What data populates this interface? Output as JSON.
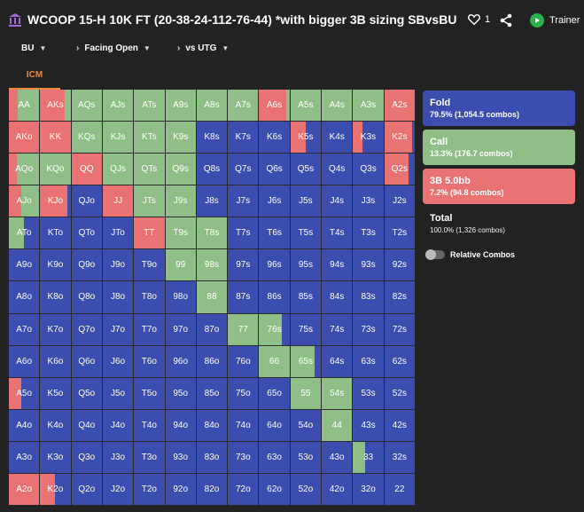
{
  "header": {
    "title": "WCOOP 15-H 10K FT (20-38-24-112-76-44) *with bigger 3B sizing SBvsBU",
    "likes": "1",
    "trainer_label": "Trainer"
  },
  "filters": {
    "position": "BU",
    "facing": "Facing Open",
    "opponent": "vs UTG"
  },
  "tab": "ICM",
  "colors": {
    "fold": "#3c4db0",
    "call": "#8fbf86",
    "raise": "#e87372"
  },
  "grid": {
    "ranks": [
      "A",
      "K",
      "Q",
      "J",
      "T",
      "9",
      "8",
      "7",
      "6",
      "5",
      "4",
      "3",
      "2"
    ],
    "hands": [
      [
        "AA",
        "AKs",
        "AQs",
        "AJs",
        "ATs",
        "A9s",
        "A8s",
        "A7s",
        "A6s",
        "A5s",
        "A4s",
        "A3s",
        "A2s"
      ],
      [
        "AKo",
        "KK",
        "KQs",
        "KJs",
        "KTs",
        "K9s",
        "K8s",
        "K7s",
        "K6s",
        "K5s",
        "K4s",
        "K3s",
        "K2s"
      ],
      [
        "AQo",
        "KQo",
        "QQ",
        "QJs",
        "QTs",
        "Q9s",
        "Q8s",
        "Q7s",
        "Q6s",
        "Q5s",
        "Q4s",
        "Q3s",
        "Q2s"
      ],
      [
        "AJo",
        "KJo",
        "QJo",
        "JJ",
        "JTs",
        "J9s",
        "J8s",
        "J7s",
        "J6s",
        "J5s",
        "J4s",
        "J3s",
        "J2s"
      ],
      [
        "ATo",
        "KTo",
        "QTo",
        "JTo",
        "TT",
        "T9s",
        "T8s",
        "T7s",
        "T6s",
        "T5s",
        "T4s",
        "T3s",
        "T2s"
      ],
      [
        "A9o",
        "K9o",
        "Q9o",
        "J9o",
        "T9o",
        "99",
        "98s",
        "97s",
        "96s",
        "95s",
        "94s",
        "93s",
        "92s"
      ],
      [
        "A8o",
        "K8o",
        "Q8o",
        "J8o",
        "T8o",
        "98o",
        "88",
        "87s",
        "86s",
        "85s",
        "84s",
        "83s",
        "82s"
      ],
      [
        "A7o",
        "K7o",
        "Q7o",
        "J7o",
        "T7o",
        "97o",
        "87o",
        "77",
        "76s",
        "75s",
        "74s",
        "73s",
        "72s"
      ],
      [
        "A6o",
        "K6o",
        "Q6o",
        "J6o",
        "T6o",
        "96o",
        "86o",
        "76o",
        "66",
        "65s",
        "64s",
        "63s",
        "62s"
      ],
      [
        "A5o",
        "K5o",
        "Q5o",
        "J5o",
        "T5o",
        "95o",
        "85o",
        "75o",
        "65o",
        "55",
        "54s",
        "53s",
        "52s"
      ],
      [
        "A4o",
        "K4o",
        "Q4o",
        "J4o",
        "T4o",
        "94o",
        "84o",
        "74o",
        "64o",
        "54o",
        "44",
        "43s",
        "42s"
      ],
      [
        "A3o",
        "K3o",
        "Q3o",
        "J3o",
        "T3o",
        "93o",
        "83o",
        "73o",
        "63o",
        "53o",
        "43o",
        "33",
        "32s"
      ],
      [
        "A2o",
        "K2o",
        "Q2o",
        "J2o",
        "T2o",
        "92o",
        "82o",
        "72o",
        "62o",
        "52o",
        "42o",
        "32o",
        "22"
      ]
    ],
    "strategy": [
      [
        [
          0,
          0.7,
          0.3
        ],
        [
          0,
          0.2,
          0.8
        ],
        [
          0,
          1,
          0
        ],
        [
          0,
          1,
          0
        ],
        [
          0,
          1,
          0
        ],
        [
          0,
          1,
          0
        ],
        [
          0,
          1,
          0
        ],
        [
          0,
          1,
          0
        ],
        [
          0,
          0.1,
          0.9
        ],
        [
          0,
          1,
          0
        ],
        [
          0,
          1,
          0
        ],
        [
          0,
          1,
          0
        ],
        [
          0,
          0,
          1
        ]
      ],
      [
        [
          0,
          0,
          1
        ],
        [
          0,
          0,
          1
        ],
        [
          0,
          1,
          0
        ],
        [
          0,
          1,
          0
        ],
        [
          0,
          1,
          0
        ],
        [
          0,
          1,
          0
        ],
        [
          1,
          0,
          0
        ],
        [
          1,
          0,
          0
        ],
        [
          1,
          0,
          0
        ],
        [
          0.5,
          0,
          0.5
        ],
        [
          1,
          0,
          0
        ],
        [
          0.7,
          0,
          0.3
        ],
        [
          0.1,
          0,
          0.9
        ]
      ],
      [
        [
          0,
          0.75,
          0.25
        ],
        [
          0,
          1,
          0
        ],
        [
          0,
          0,
          1
        ],
        [
          0,
          1,
          0
        ],
        [
          0,
          1,
          0
        ],
        [
          0,
          1,
          0
        ],
        [
          1,
          0,
          0
        ],
        [
          1,
          0,
          0
        ],
        [
          1,
          0,
          0
        ],
        [
          1,
          0,
          0
        ],
        [
          1,
          0,
          0
        ],
        [
          1,
          0,
          0
        ],
        [
          0.2,
          0,
          0.8
        ]
      ],
      [
        [
          0,
          0.6,
          0.4
        ],
        [
          0.1,
          0,
          0.9
        ],
        [
          1,
          0,
          0
        ],
        [
          0,
          0,
          1
        ],
        [
          0,
          1,
          0
        ],
        [
          0,
          1,
          0
        ],
        [
          1,
          0,
          0
        ],
        [
          1,
          0,
          0
        ],
        [
          1,
          0,
          0
        ],
        [
          1,
          0,
          0
        ],
        [
          1,
          0,
          0
        ],
        [
          1,
          0,
          0
        ],
        [
          1,
          0,
          0
        ]
      ],
      [
        [
          0.5,
          0.5,
          0
        ],
        [
          1,
          0,
          0
        ],
        [
          1,
          0,
          0
        ],
        [
          1,
          0,
          0
        ],
        [
          0,
          0,
          1
        ],
        [
          0,
          1,
          0
        ],
        [
          0,
          1,
          0
        ],
        [
          1,
          0,
          0
        ],
        [
          1,
          0,
          0
        ],
        [
          1,
          0,
          0
        ],
        [
          1,
          0,
          0
        ],
        [
          1,
          0,
          0
        ],
        [
          1,
          0,
          0
        ]
      ],
      [
        [
          1,
          0,
          0
        ],
        [
          1,
          0,
          0
        ],
        [
          1,
          0,
          0
        ],
        [
          1,
          0,
          0
        ],
        [
          1,
          0,
          0
        ],
        [
          0,
          1,
          0
        ],
        [
          0,
          1,
          0
        ],
        [
          1,
          0,
          0
        ],
        [
          1,
          0,
          0
        ],
        [
          1,
          0,
          0
        ],
        [
          1,
          0,
          0
        ],
        [
          1,
          0,
          0
        ],
        [
          1,
          0,
          0
        ]
      ],
      [
        [
          1,
          0,
          0
        ],
        [
          1,
          0,
          0
        ],
        [
          1,
          0,
          0
        ],
        [
          1,
          0,
          0
        ],
        [
          1,
          0,
          0
        ],
        [
          1,
          0,
          0
        ],
        [
          0,
          1,
          0
        ],
        [
          1,
          0,
          0
        ],
        [
          1,
          0,
          0
        ],
        [
          1,
          0,
          0
        ],
        [
          1,
          0,
          0
        ],
        [
          1,
          0,
          0
        ],
        [
          1,
          0,
          0
        ]
      ],
      [
        [
          1,
          0,
          0
        ],
        [
          1,
          0,
          0
        ],
        [
          1,
          0,
          0
        ],
        [
          1,
          0,
          0
        ],
        [
          1,
          0,
          0
        ],
        [
          1,
          0,
          0
        ],
        [
          1,
          0,
          0
        ],
        [
          0,
          1,
          0
        ],
        [
          0.25,
          0.75,
          0
        ],
        [
          1,
          0,
          0
        ],
        [
          1,
          0,
          0
        ],
        [
          1,
          0,
          0
        ],
        [
          1,
          0,
          0
        ]
      ],
      [
        [
          1,
          0,
          0
        ],
        [
          1,
          0,
          0
        ],
        [
          1,
          0,
          0
        ],
        [
          1,
          0,
          0
        ],
        [
          1,
          0,
          0
        ],
        [
          1,
          0,
          0
        ],
        [
          1,
          0,
          0
        ],
        [
          1,
          0,
          0
        ],
        [
          0,
          1,
          0
        ],
        [
          0.2,
          0.8,
          0
        ],
        [
          1,
          0,
          0
        ],
        [
          1,
          0,
          0
        ],
        [
          1,
          0,
          0
        ]
      ],
      [
        [
          0.6,
          0,
          0.4
        ],
        [
          1,
          0,
          0
        ],
        [
          1,
          0,
          0
        ],
        [
          1,
          0,
          0
        ],
        [
          1,
          0,
          0
        ],
        [
          1,
          0,
          0
        ],
        [
          1,
          0,
          0
        ],
        [
          1,
          0,
          0
        ],
        [
          1,
          0,
          0
        ],
        [
          0,
          1,
          0
        ],
        [
          0,
          1,
          0
        ],
        [
          1,
          0,
          0
        ],
        [
          1,
          0,
          0
        ]
      ],
      [
        [
          1,
          0,
          0
        ],
        [
          1,
          0,
          0
        ],
        [
          1,
          0,
          0
        ],
        [
          1,
          0,
          0
        ],
        [
          1,
          0,
          0
        ],
        [
          1,
          0,
          0
        ],
        [
          1,
          0,
          0
        ],
        [
          1,
          0,
          0
        ],
        [
          1,
          0,
          0
        ],
        [
          1,
          0,
          0
        ],
        [
          0,
          1,
          0
        ],
        [
          1,
          0,
          0
        ],
        [
          1,
          0,
          0
        ]
      ],
      [
        [
          1,
          0,
          0
        ],
        [
          1,
          0,
          0
        ],
        [
          1,
          0,
          0
        ],
        [
          1,
          0,
          0
        ],
        [
          1,
          0,
          0
        ],
        [
          1,
          0,
          0
        ],
        [
          1,
          0,
          0
        ],
        [
          1,
          0,
          0
        ],
        [
          1,
          0,
          0
        ],
        [
          1,
          0,
          0
        ],
        [
          1,
          0,
          0
        ],
        [
          0.6,
          0.4,
          0
        ],
        [
          1,
          0,
          0
        ]
      ],
      [
        [
          0,
          0,
          1
        ],
        [
          0.5,
          0,
          0.5
        ],
        [
          1,
          0,
          0
        ],
        [
          1,
          0,
          0
        ],
        [
          1,
          0,
          0
        ],
        [
          1,
          0,
          0
        ],
        [
          1,
          0,
          0
        ],
        [
          1,
          0,
          0
        ],
        [
          1,
          0,
          0
        ],
        [
          1,
          0,
          0
        ],
        [
          1,
          0,
          0
        ],
        [
          1,
          0,
          0
        ],
        [
          1,
          0,
          0
        ]
      ]
    ]
  },
  "actions": [
    {
      "name": "Fold",
      "stats": "79.5% (1,054.5 combos)",
      "color": "#3c4db0"
    },
    {
      "name": "Call",
      "stats": "13.3% (176.7 combos)",
      "color": "#8fbf86"
    },
    {
      "name": "3B 5.0bb",
      "stats": "7.2% (94.8 combos)",
      "color": "#e87372"
    }
  ],
  "total": {
    "name": "Total",
    "stats": "100.0% (1,326 combos)"
  },
  "relative_combos_label": "Relative Combos"
}
